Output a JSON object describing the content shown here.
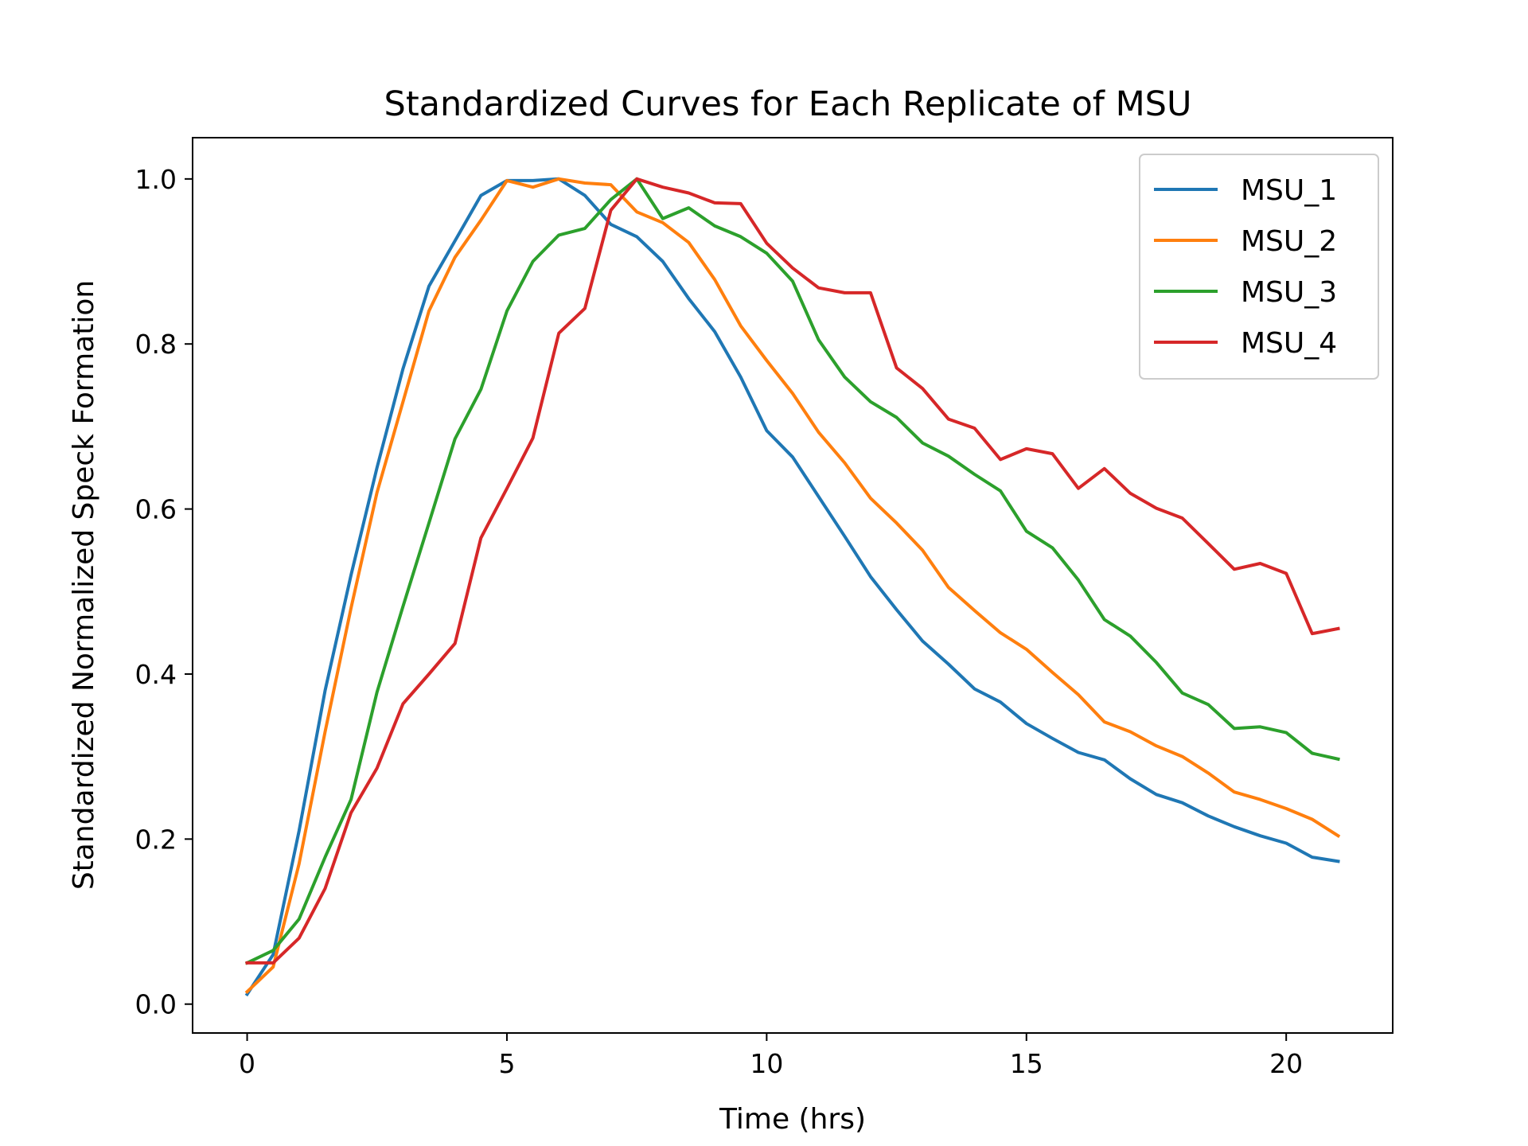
{
  "chart_data": {
    "type": "line",
    "title": "Standardized Curves for Each Replicate of MSU",
    "xlabel": "Time (hrs)",
    "ylabel": "Standardized Normalized Speck Formation",
    "xlim": [
      -1.05,
      22.05
    ],
    "ylim": [
      -0.035,
      1.05
    ],
    "xticks": [
      0,
      5,
      10,
      15,
      20
    ],
    "yticks": [
      0.0,
      0.2,
      0.4,
      0.6,
      0.8,
      1.0
    ],
    "xtick_labels": [
      "0",
      "5",
      "10",
      "15",
      "20"
    ],
    "ytick_labels": [
      "0.0",
      "0.2",
      "0.4",
      "0.6",
      "0.8",
      "1.0"
    ],
    "grid": false,
    "legend_position": "top-right",
    "x": [
      0,
      0.5,
      1,
      1.5,
      2,
      2.5,
      3,
      3.5,
      4,
      4.5,
      5,
      5.5,
      6,
      6.5,
      7,
      7.5,
      8,
      8.5,
      9,
      9.5,
      10,
      10.5,
      11,
      11.5,
      12,
      12.5,
      13,
      13.5,
      14,
      14.5,
      15,
      15.5,
      16,
      16.5,
      17,
      17.5,
      18,
      18.5,
      19,
      19.5,
      20,
      20.5,
      21
    ],
    "series": [
      {
        "name": "MSU_1",
        "color": "#1f77b4",
        "values": [
          0.012,
          0.06,
          0.21,
          0.38,
          0.52,
          0.65,
          0.77,
          0.87,
          0.925,
          0.98,
          0.998,
          0.998,
          1.0,
          0.98,
          0.945,
          0.93,
          0.9,
          0.855,
          0.815,
          0.76,
          0.695,
          0.663,
          0.615,
          0.567,
          0.518,
          0.478,
          0.44,
          0.412,
          0.382,
          0.366,
          0.34,
          0.322,
          0.305,
          0.296,
          0.273,
          0.254,
          0.244,
          0.228,
          0.215,
          0.204,
          0.195,
          0.178,
          0.173
        ]
      },
      {
        "name": "MSU_2",
        "color": "#ff7f0e",
        "values": [
          0.015,
          0.045,
          0.17,
          0.33,
          0.48,
          0.62,
          0.73,
          0.84,
          0.905,
          0.95,
          0.998,
          0.99,
          1.0,
          0.995,
          0.993,
          0.96,
          0.947,
          0.923,
          0.878,
          0.822,
          0.78,
          0.74,
          0.693,
          0.656,
          0.613,
          0.583,
          0.55,
          0.505,
          0.477,
          0.45,
          0.43,
          0.402,
          0.375,
          0.342,
          0.33,
          0.313,
          0.3,
          0.28,
          0.257,
          0.248,
          0.237,
          0.224,
          0.204
        ]
      },
      {
        "name": "MSU_3",
        "color": "#2ca02c",
        "values": [
          0.05,
          0.065,
          0.103,
          0.178,
          0.248,
          0.378,
          0.482,
          0.583,
          0.685,
          0.745,
          0.84,
          0.9,
          0.932,
          0.94,
          0.975,
          1.0,
          0.952,
          0.965,
          0.943,
          0.93,
          0.91,
          0.876,
          0.805,
          0.76,
          0.73,
          0.711,
          0.68,
          0.664,
          0.642,
          0.622,
          0.573,
          0.553,
          0.514,
          0.466,
          0.446,
          0.414,
          0.377,
          0.363,
          0.334,
          0.336,
          0.329,
          0.304,
          0.297
        ]
      },
      {
        "name": "MSU_4",
        "color": "#d62728",
        "values": [
          0.05,
          0.05,
          0.08,
          0.14,
          0.232,
          0.286,
          0.364,
          0.4,
          0.437,
          0.565,
          0.625,
          0.686,
          0.813,
          0.843,
          0.962,
          1.0,
          0.99,
          0.983,
          0.971,
          0.97,
          0.922,
          0.892,
          0.868,
          0.862,
          0.862,
          0.771,
          0.746,
          0.709,
          0.698,
          0.66,
          0.673,
          0.667,
          0.625,
          0.649,
          0.619,
          0.601,
          0.589,
          0.558,
          0.527,
          0.534,
          0.522,
          0.449,
          0.455
        ]
      }
    ]
  }
}
